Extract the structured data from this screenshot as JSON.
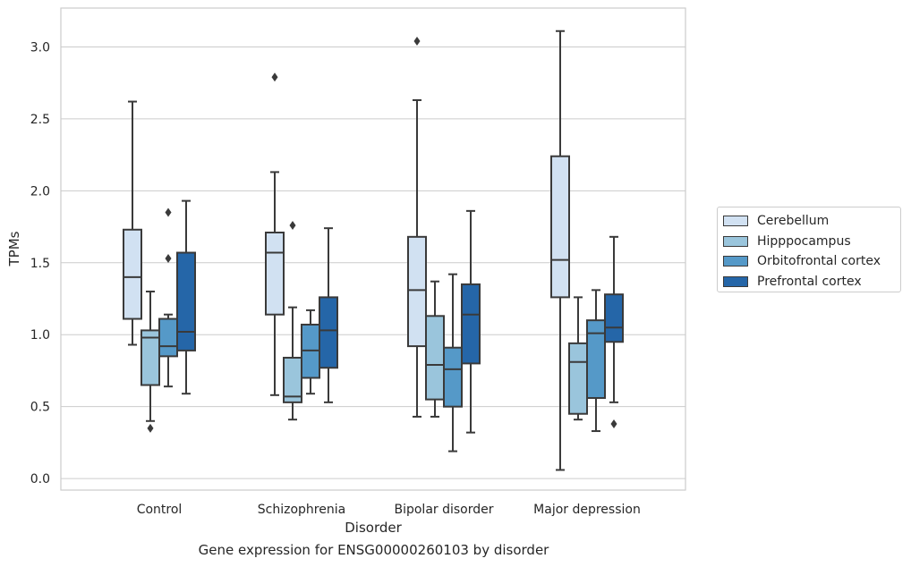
{
  "chart_data": {
    "type": "box",
    "title": "",
    "caption": "Gene expression for ENSG00000260103 by disorder",
    "xlabel": "Disorder",
    "ylabel": "TPMs",
    "ylim": [
      -0.08,
      3.27
    ],
    "yticks": [
      "0.0",
      "0.5",
      "1.0",
      "1.5",
      "2.0",
      "2.5",
      "3.0"
    ],
    "ytick_values": [
      0.0,
      0.5,
      1.0,
      1.5,
      2.0,
      2.5,
      3.0
    ],
    "grid": true,
    "legend_position": "right, outside plot",
    "categories": [
      "Control",
      "Schizophrenia",
      "Bipolar disorder",
      "Major depression"
    ],
    "series": [
      {
        "name": "Cerebellum",
        "color": "#d1e1f2",
        "boxes": [
          {
            "whisker_low": 0.93,
            "q1": 1.11,
            "median": 1.4,
            "q3": 1.73,
            "whisker_high": 2.62,
            "outliers": []
          },
          {
            "whisker_low": 0.58,
            "q1": 1.14,
            "median": 1.57,
            "q3": 1.71,
            "whisker_high": 2.13,
            "outliers": [
              2.79
            ]
          },
          {
            "whisker_low": 0.43,
            "q1": 0.92,
            "median": 1.31,
            "q3": 1.68,
            "whisker_high": 2.63,
            "outliers": [
              3.04
            ]
          },
          {
            "whisker_low": 0.06,
            "q1": 1.26,
            "median": 1.52,
            "q3": 2.24,
            "whisker_high": 3.11,
            "outliers": []
          }
        ]
      },
      {
        "name": "Hipppocampus",
        "color": "#9ac5dc",
        "boxes": [
          {
            "whisker_low": 0.4,
            "q1": 0.65,
            "median": 0.98,
            "q3": 1.03,
            "whisker_high": 1.3,
            "outliers": [
              0.35
            ]
          },
          {
            "whisker_low": 0.41,
            "q1": 0.53,
            "median": 0.57,
            "q3": 0.84,
            "whisker_high": 1.19,
            "outliers": [
              1.76
            ]
          },
          {
            "whisker_low": 0.43,
            "q1": 0.55,
            "median": 0.79,
            "q3": 1.13,
            "whisker_high": 1.37,
            "outliers": []
          },
          {
            "whisker_low": 0.41,
            "q1": 0.45,
            "median": 0.81,
            "q3": 0.94,
            "whisker_high": 1.26,
            "outliers": []
          }
        ]
      },
      {
        "name": "Orbitofrontal cortex",
        "color": "#5599c8",
        "boxes": [
          {
            "whisker_low": 0.64,
            "q1": 0.85,
            "median": 0.92,
            "q3": 1.11,
            "whisker_high": 1.14,
            "outliers": [
              1.53,
              1.85
            ]
          },
          {
            "whisker_low": 0.59,
            "q1": 0.7,
            "median": 0.89,
            "q3": 1.07,
            "whisker_high": 1.17,
            "outliers": []
          },
          {
            "whisker_low": 0.19,
            "q1": 0.5,
            "median": 0.76,
            "q3": 0.91,
            "whisker_high": 1.42,
            "outliers": []
          },
          {
            "whisker_low": 0.33,
            "q1": 0.56,
            "median": 1.01,
            "q3": 1.1,
            "whisker_high": 1.31,
            "outliers": []
          }
        ]
      },
      {
        "name": "Prefrontal cortex",
        "color": "#2566a8",
        "boxes": [
          {
            "whisker_low": 0.59,
            "q1": 0.89,
            "median": 1.02,
            "q3": 1.57,
            "whisker_high": 1.93,
            "outliers": []
          },
          {
            "whisker_low": 0.53,
            "q1": 0.77,
            "median": 1.03,
            "q3": 1.26,
            "whisker_high": 1.74,
            "outliers": []
          },
          {
            "whisker_low": 0.32,
            "q1": 0.8,
            "median": 1.14,
            "q3": 1.35,
            "whisker_high": 1.86,
            "outliers": []
          },
          {
            "whisker_low": 0.53,
            "q1": 0.95,
            "median": 1.05,
            "q3": 1.28,
            "whisker_high": 1.68,
            "outliers": [
              0.38
            ]
          }
        ]
      }
    ]
  }
}
